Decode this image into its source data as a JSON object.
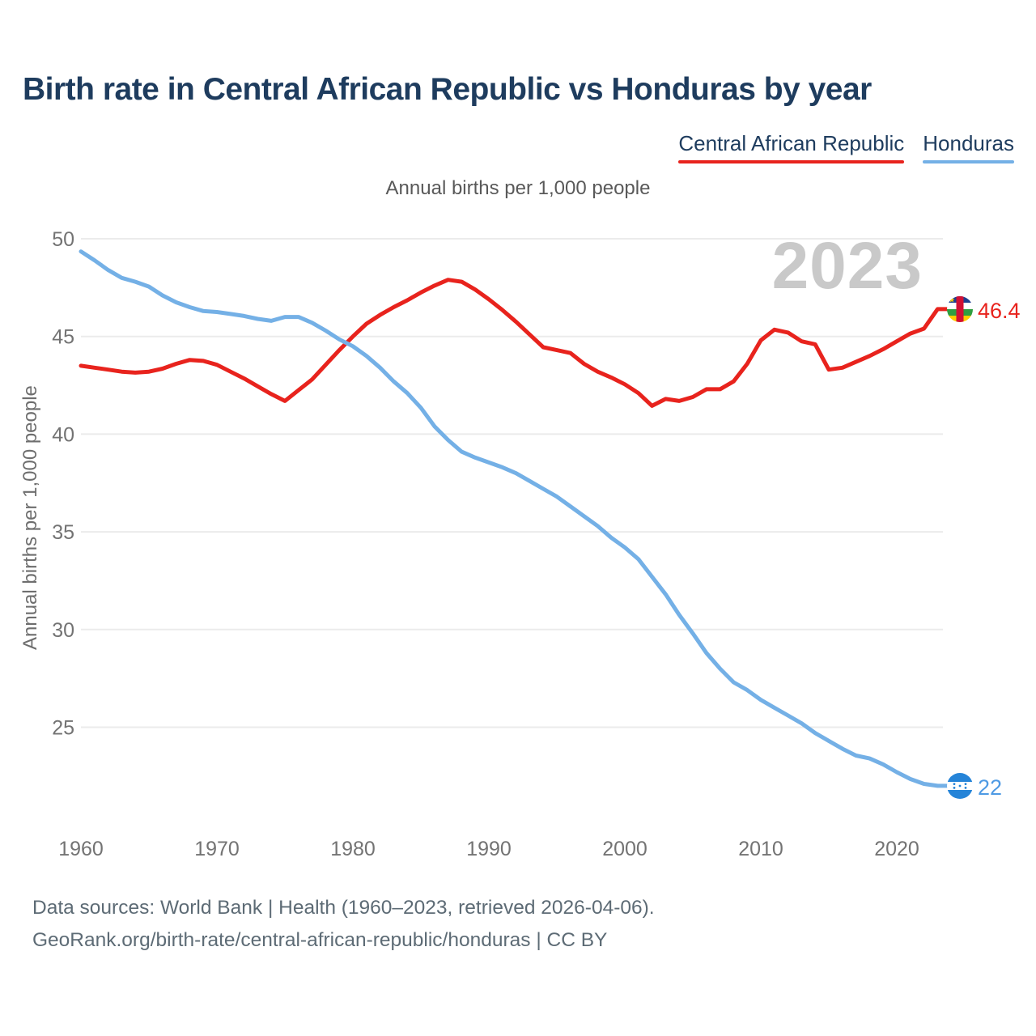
{
  "chart_data": {
    "type": "line",
    "title": "Birth rate in Central African Republic vs Honduras by year",
    "subtitle": "Annual births per 1,000 people",
    "ylabel": "Annual births per 1,000 people",
    "watermark": "2023",
    "grid": "horizontal-only",
    "legend_position": "top-right",
    "xlim": [
      1960,
      2023
    ],
    "ylim": [
      21.5,
      50.5
    ],
    "xticks": [
      1960,
      1970,
      1980,
      1990,
      2000,
      2010,
      2020
    ],
    "yticks": [
      25,
      30,
      35,
      40,
      45,
      50
    ],
    "x": [
      1960,
      1961,
      1962,
      1963,
      1964,
      1965,
      1966,
      1967,
      1968,
      1969,
      1970,
      1971,
      1972,
      1973,
      1974,
      1975,
      1976,
      1977,
      1978,
      1979,
      1980,
      1981,
      1982,
      1983,
      1984,
      1985,
      1986,
      1987,
      1988,
      1989,
      1990,
      1991,
      1992,
      1993,
      1994,
      1995,
      1996,
      1997,
      1998,
      1999,
      2000,
      2001,
      2002,
      2003,
      2004,
      2005,
      2006,
      2007,
      2008,
      2009,
      2010,
      2011,
      2012,
      2013,
      2014,
      2015,
      2016,
      2017,
      2018,
      2019,
      2020,
      2021,
      2022,
      2023
    ],
    "series": [
      {
        "name": "Central African Republic",
        "color": "#e8231d",
        "label_color": "#e8231d",
        "end_label": "46.4",
        "flag": "central-african-republic",
        "values": [
          43.5,
          43.4,
          43.3,
          43.2,
          43.15,
          43.2,
          43.35,
          43.6,
          43.8,
          43.75,
          43.55,
          43.2,
          42.85,
          42.45,
          42.05,
          41.7,
          42.25,
          42.8,
          43.55,
          44.3,
          45.0,
          45.65,
          46.1,
          46.5,
          46.85,
          47.25,
          47.6,
          47.9,
          47.8,
          47.4,
          46.9,
          46.35,
          45.75,
          45.1,
          44.45,
          44.3,
          44.15,
          43.6,
          43.2,
          42.9,
          42.55,
          42.1,
          41.45,
          41.8,
          41.7,
          41.9,
          42.3,
          42.3,
          42.7,
          43.6,
          44.8,
          45.35,
          45.2,
          44.75,
          44.6,
          43.3,
          43.4,
          43.7,
          44.0,
          44.35,
          44.75,
          45.15,
          45.4,
          46.4
        ]
      },
      {
        "name": "Honduras",
        "color": "#74b0e6",
        "label_color": "#4e9ae4",
        "end_label": "22",
        "flag": "honduras",
        "values": [
          49.35,
          48.9,
          48.4,
          48.0,
          47.8,
          47.55,
          47.1,
          46.75,
          46.5,
          46.3,
          46.25,
          46.15,
          46.05,
          45.9,
          45.8,
          46.0,
          46.0,
          45.7,
          45.3,
          44.85,
          44.5,
          44.0,
          43.4,
          42.7,
          42.1,
          41.35,
          40.4,
          39.7,
          39.1,
          38.8,
          38.55,
          38.3,
          38.0,
          37.6,
          37.2,
          36.8,
          36.3,
          35.8,
          35.3,
          34.7,
          34.2,
          33.6,
          32.7,
          31.8,
          30.75,
          29.8,
          28.8,
          28.0,
          27.3,
          26.9,
          26.4,
          26.0,
          25.6,
          25.2,
          24.7,
          24.3,
          23.9,
          23.55,
          23.4,
          23.1,
          22.7,
          22.35,
          22.1,
          22.0
        ]
      }
    ],
    "axis_colors": {
      "tick_label": "#737373",
      "gridline": "#ebebeb"
    }
  },
  "footer": {
    "line1": "Data sources: World Bank | Health (1960–2023, retrieved 2026-04-06).",
    "line2": "GeoRank.org/birth-rate/central-african-republic/honduras | CC BY"
  }
}
